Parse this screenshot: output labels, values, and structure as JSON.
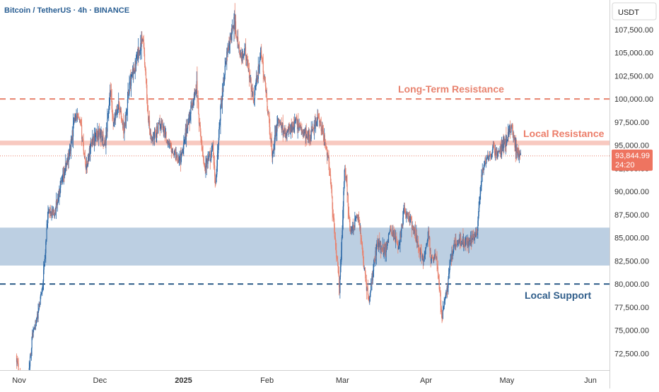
{
  "header": {
    "title": "Bitcoin / TetherUS · 4h · BINANCE",
    "currency": "USDT"
  },
  "price_tag": {
    "price": "93,844.99",
    "countdown": "24:20"
  },
  "colors": {
    "up": "#2e6aa8",
    "down": "#e8836f",
    "long_term_resistance": "#e8836f",
    "local_resistance_band": "#f8c9c0",
    "local_resistance_text": "#ec7d69",
    "demand_zone": "#b8cce0",
    "local_support": "#2f5d8a",
    "axis_text": "#333333",
    "tag_bg": "#ee7460"
  },
  "chart_data": {
    "type": "candlestick",
    "x_axis_ticks": [
      "Nov",
      "Dec",
      "2025",
      "Feb",
      "Mar",
      "Apr",
      "May",
      "Jun"
    ],
    "y_axis_ticks": [
      "72,500.00",
      "75,000.00",
      "77,500.00",
      "80,000.00",
      "82,500.00",
      "85,000.00",
      "87,500.00",
      "90,000.00",
      "92,500.00",
      "95,000.00",
      "97,500.00",
      "100,000.00",
      "102,500.00",
      "105,000.00",
      "107,500.00"
    ],
    "ylim": [
      70700,
      110700
    ],
    "annotations": [
      {
        "label": "Long-Term Resistance",
        "type": "dashed-line",
        "price": 100000
      },
      {
        "label": "Local Resistance",
        "type": "band",
        "price_from": 95000,
        "price_to": 95500
      },
      {
        "label": "",
        "type": "zone",
        "price_from": 82000,
        "price_to": 86100
      },
      {
        "label": "Local Support",
        "type": "dashed-line",
        "price": 80000
      }
    ],
    "last_price": 93844.99,
    "price_path": [
      [
        "2024-10-31",
        72300
      ],
      [
        "2024-11-01",
        70500
      ],
      [
        "2024-11-04",
        68000
      ],
      [
        "2024-11-06",
        74500
      ],
      [
        "2024-11-08",
        76500
      ],
      [
        "2024-11-10",
        80500
      ],
      [
        "2024-11-12",
        88000
      ],
      [
        "2024-11-14",
        87500
      ],
      [
        "2024-11-17",
        91000
      ],
      [
        "2024-11-20",
        94500
      ],
      [
        "2024-11-22",
        98500
      ],
      [
        "2024-11-24",
        97000
      ],
      [
        "2024-11-26",
        92500
      ],
      [
        "2024-11-28",
        95500
      ],
      [
        "2024-12-01",
        96500
      ],
      [
        "2024-12-03",
        95000
      ],
      [
        "2024-12-05",
        101000
      ],
      [
        "2024-12-06",
        97000
      ],
      [
        "2024-12-08",
        99500
      ],
      [
        "2024-12-10",
        96500
      ],
      [
        "2024-12-12",
        101500
      ],
      [
        "2024-12-15",
        104500
      ],
      [
        "2024-12-17",
        107000
      ],
      [
        "2024-12-19",
        98000
      ],
      [
        "2024-12-20",
        95500
      ],
      [
        "2024-12-22",
        96500
      ],
      [
        "2024-12-24",
        97500
      ],
      [
        "2024-12-26",
        95500
      ],
      [
        "2024-12-29",
        94000
      ],
      [
        "2024-12-31",
        93500
      ],
      [
        "2025-01-02",
        96500
      ],
      [
        "2025-01-06",
        101500
      ],
      [
        "2025-01-07",
        97000
      ],
      [
        "2025-01-09",
        92500
      ],
      [
        "2025-01-12",
        94500
      ],
      [
        "2025-01-13",
        90500
      ],
      [
        "2025-01-15",
        99500
      ],
      [
        "2025-01-17",
        104500
      ],
      [
        "2025-01-20",
        108500
      ],
      [
        "2025-01-22",
        104500
      ],
      [
        "2025-01-24",
        105000
      ],
      [
        "2025-01-27",
        100000
      ],
      [
        "2025-01-30",
        105000
      ],
      [
        "2025-02-02",
        97000
      ],
      [
        "2025-02-03",
        94000
      ],
      [
        "2025-02-05",
        97500
      ],
      [
        "2025-02-08",
        96500
      ],
      [
        "2025-02-12",
        97500
      ],
      [
        "2025-02-14",
        96500
      ],
      [
        "2025-02-17",
        96000
      ],
      [
        "2025-02-20",
        98000
      ],
      [
        "2025-02-22",
        96000
      ],
      [
        "2025-02-24",
        93500
      ],
      [
        "2025-02-26",
        86000
      ],
      [
        "2025-02-28",
        79500
      ],
      [
        "2025-03-02",
        93000
      ],
      [
        "2025-03-04",
        85500
      ],
      [
        "2025-03-07",
        87500
      ],
      [
        "2025-03-10",
        79500
      ],
      [
        "2025-03-11",
        78500
      ],
      [
        "2025-03-14",
        84500
      ],
      [
        "2025-03-17",
        83500
      ],
      [
        "2025-03-19",
        86000
      ],
      [
        "2025-03-22",
        84000
      ],
      [
        "2025-03-24",
        88000
      ],
      [
        "2025-03-26",
        87000
      ],
      [
        "2025-03-28",
        85500
      ],
      [
        "2025-03-31",
        82500
      ],
      [
        "2025-04-02",
        85500
      ],
      [
        "2025-04-03",
        82500
      ],
      [
        "2025-04-05",
        83000
      ],
      [
        "2025-04-07",
        76500
      ],
      [
        "2025-04-09",
        79500
      ],
      [
        "2025-04-10",
        82500
      ],
      [
        "2025-04-12",
        84500
      ],
      [
        "2025-04-14",
        84500
      ],
      [
        "2025-04-17",
        84500
      ],
      [
        "2025-04-20",
        85500
      ],
      [
        "2025-04-22",
        92500
      ],
      [
        "2025-04-24",
        93500
      ],
      [
        "2025-04-26",
        94500
      ],
      [
        "2025-04-28",
        94000
      ],
      [
        "2025-04-30",
        95000
      ],
      [
        "2025-05-02",
        96500
      ],
      [
        "2025-05-03",
        97000
      ],
      [
        "2025-05-04",
        95000
      ],
      [
        "2025-05-05",
        94500
      ],
      [
        "2025-05-06",
        93845
      ]
    ]
  }
}
